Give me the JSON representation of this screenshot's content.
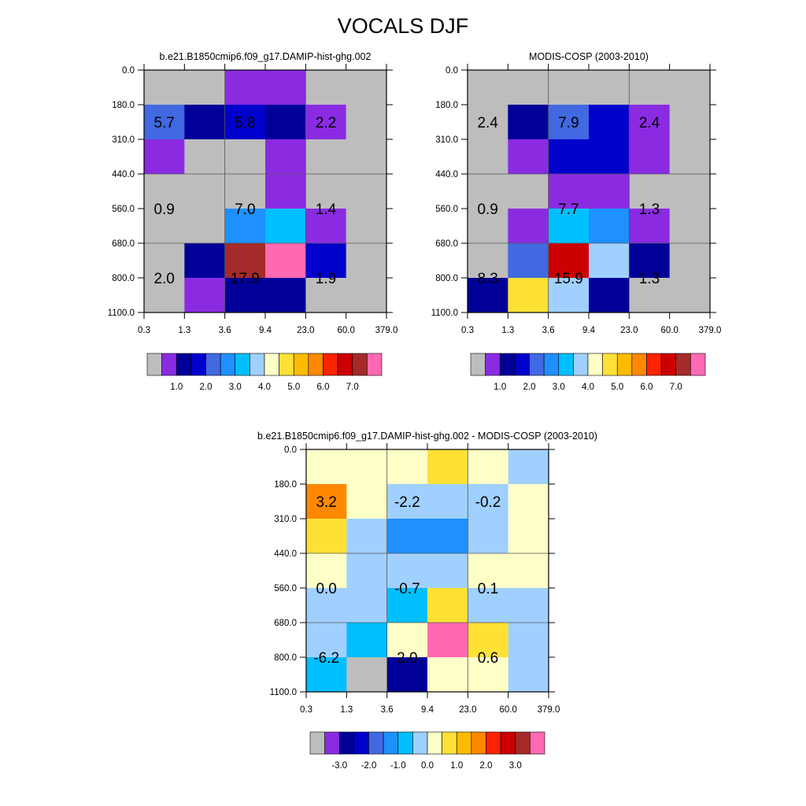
{
  "figure": {
    "title": "VOCALS DJF"
  },
  "palette_raw": [
    "#bdbdbd",
    "#8a2be2",
    "#000099",
    "#0000cc",
    "#4169e1",
    "#1e90ff",
    "#00bfff",
    "#a0d0ff",
    "#ffffc8",
    "#ffe135",
    "#ffbb00",
    "#ff8800",
    "#ff2200",
    "#cc0000",
    "#a52a2a",
    "#ff69b4"
  ],
  "palette_diff": [
    "#bdbdbd",
    "#8a2be2",
    "#000099",
    "#0000cc",
    "#4169e1",
    "#1e90ff",
    "#00bfff",
    "#a0d0ff",
    "#ffffc8",
    "#ffe135",
    "#ffbb00",
    "#ff8800",
    "#ff2200",
    "#cc0000",
    "#a52a2a",
    "#ff69b4"
  ],
  "chart_data": [
    {
      "type": "heatmap",
      "title": "b.e21.B1850cmip6.f09_g17.DAMIP-hist-ghg.002",
      "x_ticks": [
        "0.3",
        "1.3",
        "3.6",
        "9.4",
        "23.0",
        "60.0",
        "379.0"
      ],
      "y_ticks": [
        "0.0",
        "180.0",
        "310.0",
        "440.0",
        "560.0",
        "680.0",
        "800.0",
        "1100.0"
      ],
      "colorbar_labels": [
        "1.0",
        "2.0",
        "3.0",
        "4.0",
        "5.0",
        "6.0",
        "7.0"
      ],
      "cell_color_index": [
        [
          0,
          0,
          1,
          1,
          0,
          0
        ],
        [
          4,
          2,
          3,
          2,
          1,
          0
        ],
        [
          1,
          0,
          0,
          1,
          0,
          0
        ],
        [
          0,
          0,
          0,
          1,
          0,
          0
        ],
        [
          0,
          0,
          5,
          6,
          1,
          0
        ],
        [
          0,
          2,
          14,
          15,
          3,
          0
        ],
        [
          0,
          1,
          2,
          2,
          0,
          0
        ]
      ],
      "annotations": [
        {
          "text": "5.7",
          "col": 0.5,
          "row": 1.5
        },
        {
          "text": "5.8",
          "col": 2.5,
          "row": 1.5
        },
        {
          "text": "2.2",
          "col": 4.5,
          "row": 1.5
        },
        {
          "text": "0.9",
          "col": 0.5,
          "row": 4.0
        },
        {
          "text": "7.0",
          "col": 2.5,
          "row": 4.0
        },
        {
          "text": "1.4",
          "col": 4.5,
          "row": 4.0
        },
        {
          "text": "2.0",
          "col": 0.5,
          "row": 6.0
        },
        {
          "text": "17.9",
          "col": 2.5,
          "row": 6.0
        },
        {
          "text": "1.9",
          "col": 4.5,
          "row": 6.0
        }
      ]
    },
    {
      "type": "heatmap",
      "title": "MODIS-COSP (2003-2010)",
      "x_ticks": [
        "0.3",
        "1.3",
        "3.6",
        "9.4",
        "23.0",
        "60.0",
        "379.0"
      ],
      "y_ticks": [
        "0.0",
        "180.0",
        "310.0",
        "440.0",
        "560.0",
        "680.0",
        "800.0",
        "1100.0"
      ],
      "colorbar_labels": [
        "1.0",
        "2.0",
        "3.0",
        "4.0",
        "5.0",
        "6.0",
        "7.0"
      ],
      "cell_color_index": [
        [
          0,
          0,
          0,
          0,
          0,
          0
        ],
        [
          0,
          2,
          4,
          3,
          1,
          0
        ],
        [
          0,
          1,
          3,
          3,
          1,
          0
        ],
        [
          0,
          0,
          1,
          1,
          0,
          0
        ],
        [
          0,
          1,
          6,
          5,
          1,
          0
        ],
        [
          0,
          4,
          13,
          7,
          2,
          0
        ],
        [
          2,
          9,
          7,
          2,
          0,
          0
        ]
      ],
      "annotations": [
        {
          "text": "2.4",
          "col": 0.5,
          "row": 1.5
        },
        {
          "text": "7.9",
          "col": 2.5,
          "row": 1.5
        },
        {
          "text": "2.4",
          "col": 4.5,
          "row": 1.5
        },
        {
          "text": "0.9",
          "col": 0.5,
          "row": 4.0
        },
        {
          "text": "7.7",
          "col": 2.5,
          "row": 4.0
        },
        {
          "text": "1.3",
          "col": 4.5,
          "row": 4.0
        },
        {
          "text": "8.3",
          "col": 0.5,
          "row": 6.0
        },
        {
          "text": "15.9",
          "col": 2.5,
          "row": 6.0
        },
        {
          "text": "1.3",
          "col": 4.5,
          "row": 6.0
        }
      ]
    },
    {
      "type": "heatmap",
      "title": "b.e21.B1850cmip6.f09_g17.DAMIP-hist-ghg.002 - MODIS-COSP (2003-2010)",
      "x_ticks": [
        "0.3",
        "1.3",
        "3.6",
        "9.4",
        "23.0",
        "60.0",
        "379.0"
      ],
      "y_ticks": [
        "0.0",
        "180.0",
        "310.0",
        "440.0",
        "560.0",
        "680.0",
        "800.0",
        "1100.0"
      ],
      "colorbar_labels": [
        "-3.0",
        "-2.0",
        "-1.0",
        "0.0",
        "1.0",
        "2.0",
        "3.0"
      ],
      "cell_color_index": [
        [
          8,
          8,
          8,
          9,
          8,
          7
        ],
        [
          11,
          8,
          7,
          7,
          7,
          8
        ],
        [
          9,
          7,
          5,
          5,
          7,
          8
        ],
        [
          8,
          7,
          7,
          7,
          8,
          8
        ],
        [
          7,
          7,
          6,
          9,
          7,
          7
        ],
        [
          7,
          6,
          8,
          15,
          9,
          7
        ],
        [
          6,
          0,
          2,
          8,
          8,
          7
        ]
      ],
      "annotations": [
        {
          "text": "3.2",
          "col": 0.5,
          "row": 1.5
        },
        {
          "text": "-2.2",
          "col": 2.5,
          "row": 1.5
        },
        {
          "text": "-0.2",
          "col": 4.5,
          "row": 1.5
        },
        {
          "text": "0.0",
          "col": 0.5,
          "row": 4.0
        },
        {
          "text": "-0.7",
          "col": 2.5,
          "row": 4.0
        },
        {
          "text": "0.1",
          "col": 4.5,
          "row": 4.0
        },
        {
          "text": "-6.2",
          "col": 0.5,
          "row": 6.0
        },
        {
          "text": "2.0",
          "col": 2.5,
          "row": 6.0
        },
        {
          "text": "0.6",
          "col": 4.5,
          "row": 6.0
        }
      ]
    }
  ]
}
